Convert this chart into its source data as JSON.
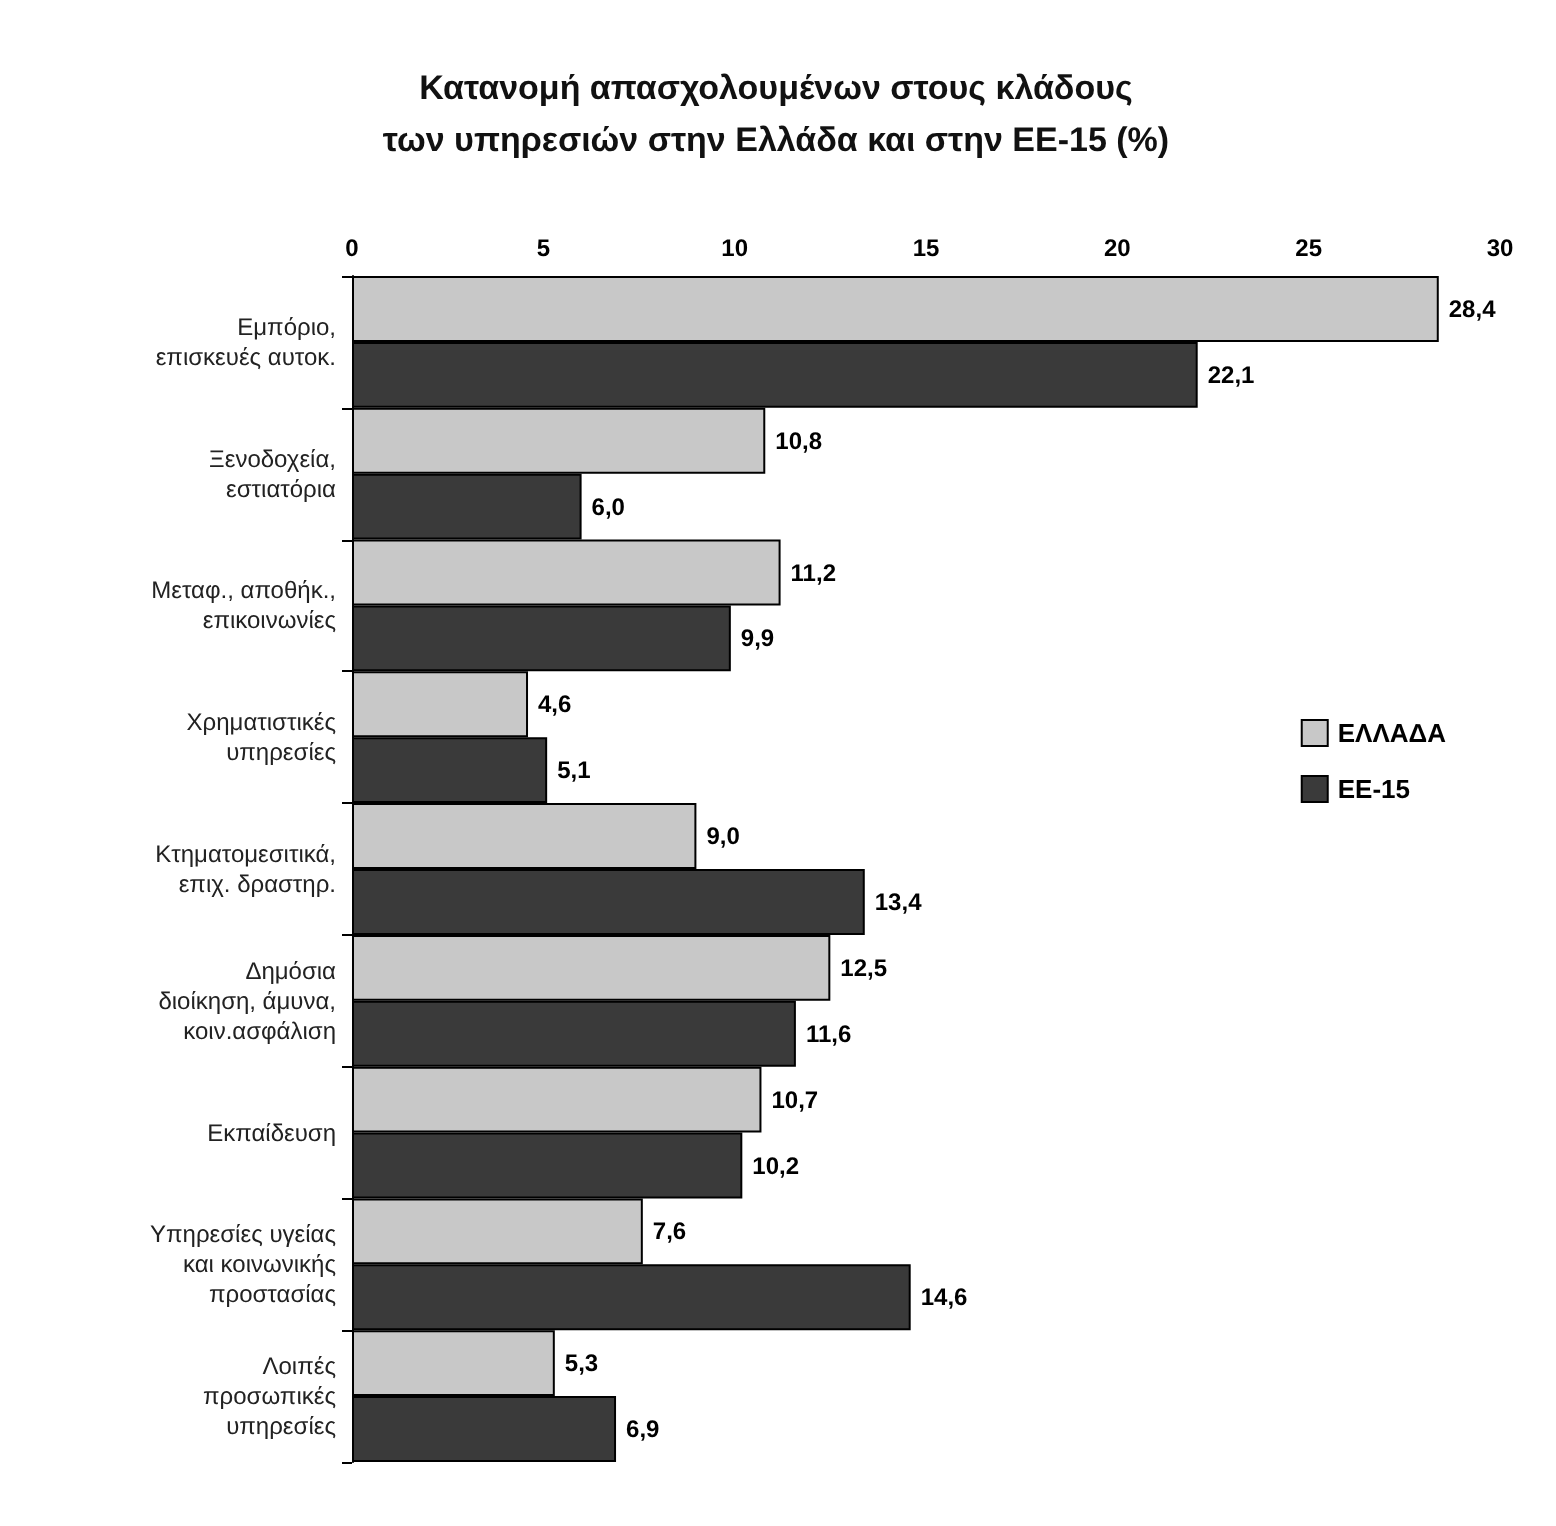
{
  "chart_data": {
    "type": "bar",
    "orientation": "horizontal",
    "title": "Κατανομή απασχολουμένων στους κλάδους\nτων υπηρεσιών στην Ελλάδα και στην ΕΕ-15 (%)",
    "categories": [
      "Εμπόριο,\nεπισκευές αυτοκ.",
      "Ξενοδοχεία,\nεστιατόρια",
      "Μεταφ., αποθήκ.,\nεπικοινωνίες",
      "Χρηματιστικές\nυπηρεσίες",
      "Κτηματομεσιτικά,\nεπιχ. δραστηρ.",
      "Δημόσια\nδιοίκηση, άμυνα,\nκοιν.ασφάλιση",
      "Εκπαίδευση",
      "Υπηρεσίες υγείας\nκαι κοινωνικής\nπροστασίας",
      "Λοιπές\nπροσωπικές\nυπηρεσίες"
    ],
    "series": [
      {
        "name": "ΕΛΛΑΔΑ",
        "color": "#c8c8c8",
        "values": [
          28.4,
          10.8,
          11.2,
          4.6,
          9.0,
          12.5,
          10.7,
          7.6,
          5.3
        ],
        "value_labels": [
          "28,4",
          "10,8",
          "11,2",
          "4,6",
          "9,0",
          "12,5",
          "10,7",
          "7,6",
          "5,3"
        ]
      },
      {
        "name": "ΕΕ-15",
        "color": "#3a3a3a",
        "values": [
          22.1,
          6.0,
          9.9,
          5.1,
          13.4,
          11.6,
          10.2,
          14.6,
          6.9
        ],
        "value_labels": [
          "22,1",
          "6,0",
          "9,9",
          "5,1",
          "13,4",
          "11,6",
          "10,2",
          "14,6",
          "6,9"
        ]
      }
    ],
    "xlim": [
      0,
      30
    ],
    "xticks": [
      0,
      5,
      10,
      15,
      20,
      25,
      30
    ],
    "grid": false,
    "legend": "right"
  }
}
